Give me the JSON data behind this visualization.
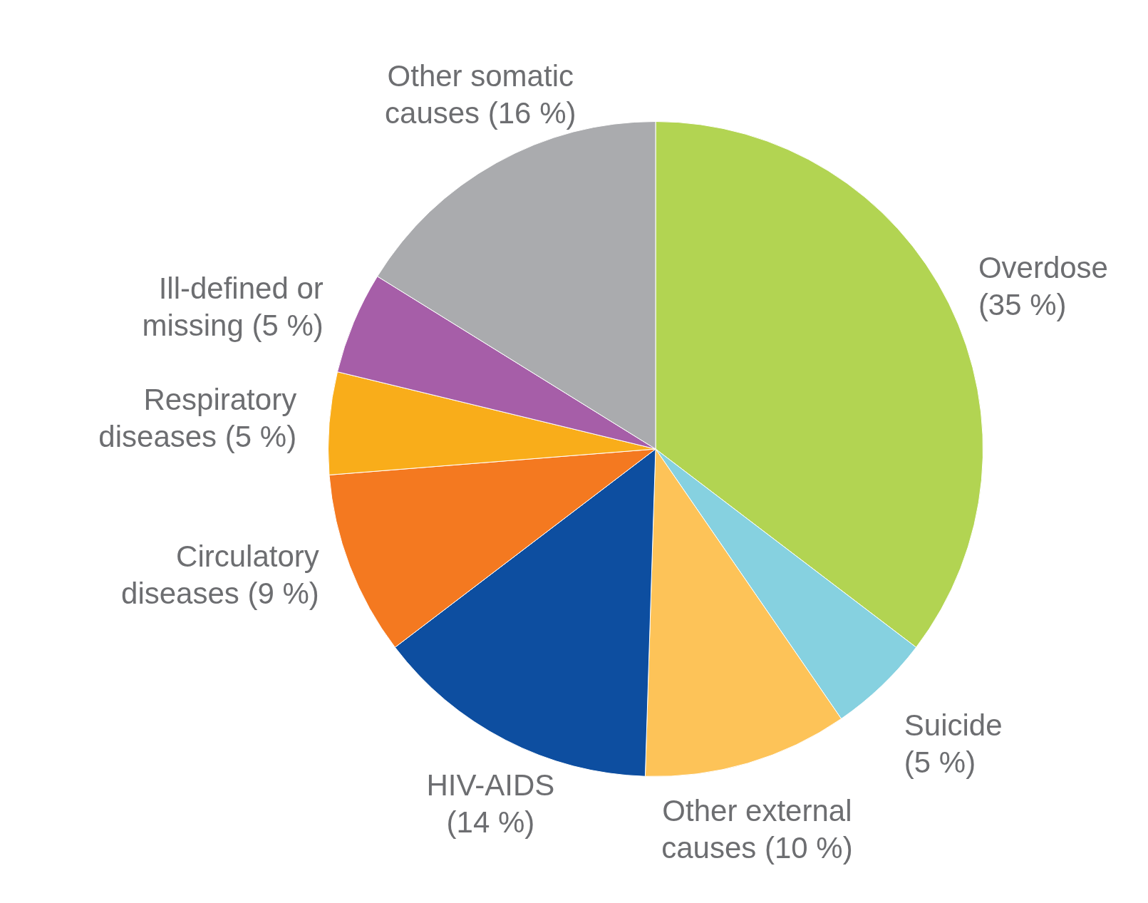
{
  "chart_data": {
    "type": "pie",
    "categories": [
      "Overdose",
      "Suicide",
      "Other external causes",
      "HIV-AIDS",
      "Circulatory diseases",
      "Respiratory diseases",
      "Ill-defined or missing",
      "Other somatic causes"
    ],
    "values": [
      35,
      5,
      10,
      14,
      9,
      5,
      5,
      16
    ],
    "value_labels": [
      "(35 %)",
      "(5 %)",
      "(10 %)",
      "(14 %)",
      "(9 %)",
      "(5 %)",
      "(5 %)",
      "(16 %)"
    ],
    "colors": [
      "#b2d452",
      "#86d1e0",
      "#fdc358",
      "#0d4ea0",
      "#f47920",
      "#f9ad1a",
      "#a65ea8",
      "#aaabae"
    ]
  }
}
